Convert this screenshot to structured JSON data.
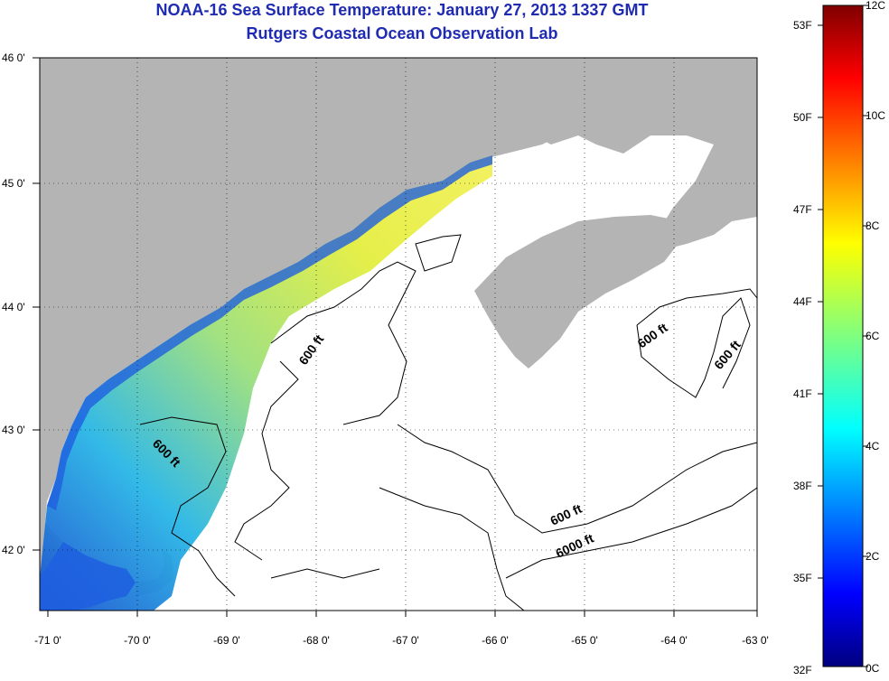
{
  "header": {
    "title": "NOAA-16 Sea Surface Temperature:  January 27, 2013 1337 GMT",
    "subtitle": "Rutgers Coastal Ocean Observation Lab"
  },
  "map": {
    "lat_labels": [
      "46 0'",
      "45 0'",
      "44 0'",
      "43 0'",
      "42 0'"
    ],
    "lon_labels": [
      "-71 0'",
      "-70 0'",
      "-69 0'",
      "-68 0'",
      "-67 0'",
      "-66 0'",
      "-65 0'",
      "-64 0'",
      "-63 0'"
    ],
    "contour_labels": [
      "600 ft",
      "600 ft",
      "600 ft",
      "600 ft",
      "600 ft",
      "6000 ft"
    ],
    "colors": {
      "land": "#b4b4b4",
      "ocean_nodata": "#ffffff",
      "title": "#1f2bb0"
    }
  },
  "colorbar": {
    "fahrenheit_labels": [
      "53F",
      "50F",
      "47F",
      "44F",
      "41F",
      "38F",
      "35F",
      "32F"
    ],
    "celsius_labels": [
      "12C",
      "10C",
      "8C",
      "6C",
      "4C",
      "2C",
      "0C"
    ],
    "colormap": "jet"
  }
}
